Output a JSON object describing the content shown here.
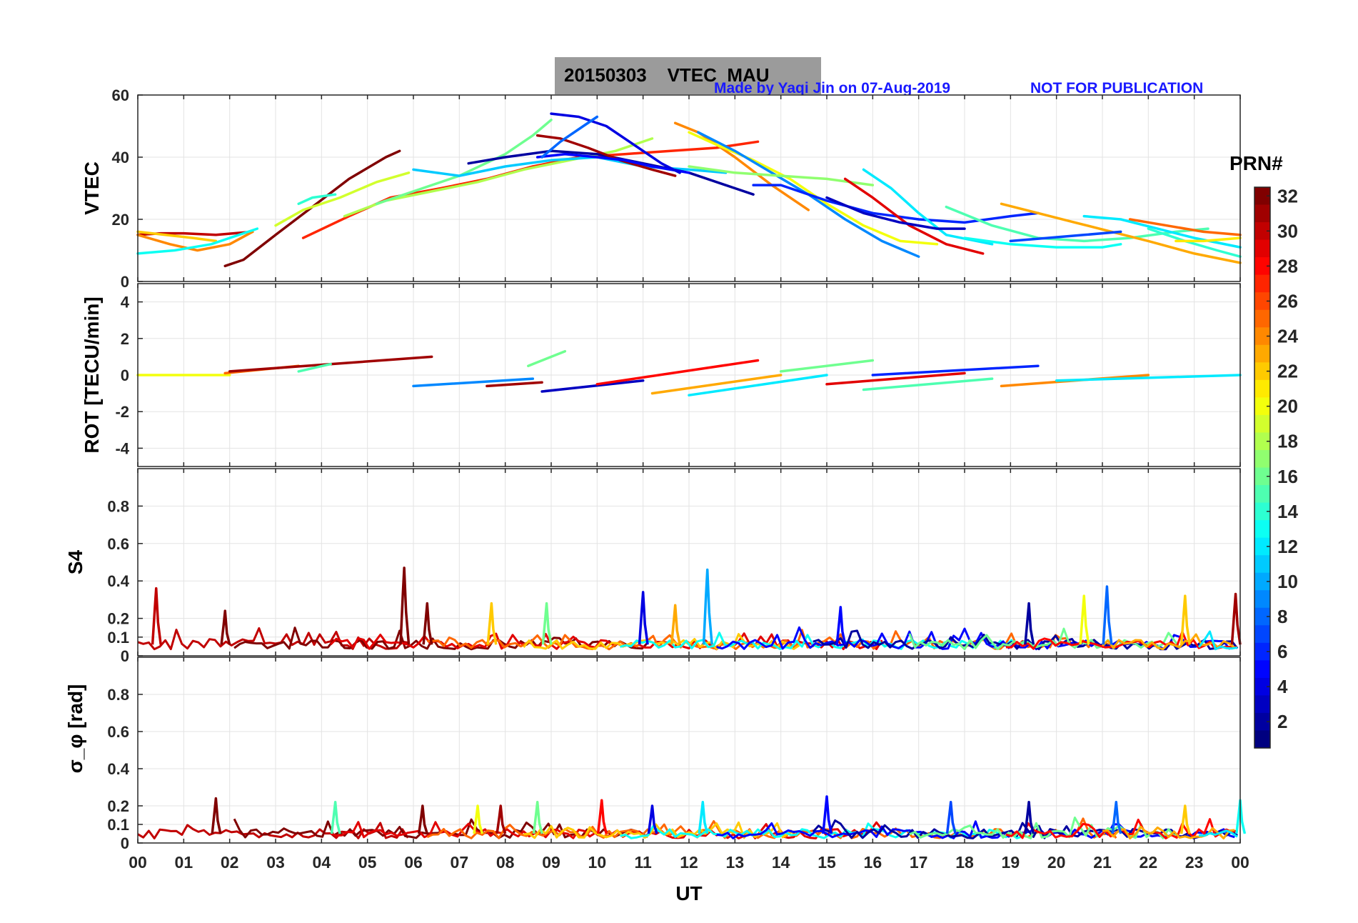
{
  "header": {
    "title": "20150303    VTEC  MAU",
    "credit": "Made by Yaqi Jin on 07-Aug-2019",
    "notice": "NOT FOR PUBLICATION"
  },
  "chart_data": [
    {
      "type": "line",
      "panel": "vtec",
      "ylabel": "VTEC",
      "ylim": [
        0,
        60
      ],
      "yticks": [
        "0",
        "20",
        "40",
        "60"
      ],
      "xlim": [
        0,
        24
      ],
      "grid": true,
      "series": [
        {
          "prn": 30,
          "x": [
            0.0,
            0.5,
            1.0,
            1.7,
            2.5
          ],
          "y": [
            15,
            15.5,
            15.5,
            15,
            16
          ]
        },
        {
          "prn": 32,
          "x": [
            1.9,
            2.3,
            3.0,
            3.8,
            4.6,
            5.4,
            5.7
          ],
          "y": [
            5,
            7,
            15,
            24,
            33,
            40,
            42
          ]
        },
        {
          "prn": 22,
          "x": [
            0.0,
            0.6,
            1.2,
            1.7
          ],
          "y": [
            16,
            15,
            14,
            13
          ]
        },
        {
          "prn": 24,
          "x": [
            0.0,
            0.7,
            1.3,
            2.0,
            2.5
          ],
          "y": [
            15,
            12,
            10,
            12,
            16
          ]
        },
        {
          "prn": 13,
          "x": [
            0.0,
            0.8,
            1.6,
            2.6
          ],
          "y": [
            9,
            10,
            12,
            17
          ]
        },
        {
          "prn": 19,
          "x": [
            3.0,
            3.6,
            4.4,
            5.2,
            5.9
          ],
          "y": [
            18,
            23,
            27,
            32,
            35
          ]
        },
        {
          "prn": 14,
          "x": [
            3.5,
            3.8,
            4.3
          ],
          "y": [
            25,
            27,
            28
          ]
        },
        {
          "prn": 27,
          "x": [
            3.6,
            4.6,
            5.5,
            6.6,
            7.6,
            8.6,
            9.6,
            10.6,
            11.6,
            12.6,
            13.5
          ],
          "y": [
            14,
            21,
            27,
            30,
            33,
            37,
            40,
            41,
            42,
            43,
            45
          ]
        },
        {
          "prn": 18,
          "x": [
            4.5,
            5.4,
            6.4,
            7.4,
            8.4,
            9.4,
            10.4,
            11.2
          ],
          "y": [
            21,
            26,
            29,
            32,
            36,
            39,
            42,
            46
          ]
        },
        {
          "prn": 16,
          "x": [
            5.2,
            6.0,
            7.0,
            8.0,
            8.6,
            9.0
          ],
          "y": [
            25,
            29,
            34,
            41,
            47,
            52
          ]
        },
        {
          "prn": 11,
          "x": [
            6.0,
            7.0,
            8.0,
            9.0,
            10.0,
            11.0,
            12.0,
            12.8
          ],
          "y": [
            36,
            34,
            37,
            39,
            40,
            37,
            36,
            35
          ]
        },
        {
          "prn": 2,
          "x": [
            7.2,
            8.0,
            9.0,
            10.0,
            11.0,
            12.0,
            13.0,
            13.4
          ],
          "y": [
            38,
            40,
            42,
            41,
            38,
            35,
            30,
            28
          ]
        },
        {
          "prn": 31,
          "x": [
            8.7,
            9.2,
            9.8,
            10.5,
            11.2,
            11.7
          ],
          "y": [
            47,
            46,
            43,
            39,
            36,
            34
          ]
        },
        {
          "prn": 5,
          "x": [
            8.7,
            9.3,
            10.0,
            10.6,
            11.2,
            12.0
          ],
          "y": [
            40,
            41,
            40,
            39,
            37,
            35
          ]
        },
        {
          "prn": 4,
          "x": [
            9.0,
            9.6,
            10.2,
            10.8,
            11.4,
            11.8
          ],
          "y": [
            54,
            53,
            50,
            44,
            38,
            35
          ]
        },
        {
          "prn": 8,
          "x": [
            8.8,
            9.2,
            9.7,
            10.0
          ],
          "y": [
            40,
            45,
            50,
            53
          ]
        },
        {
          "prn": 24,
          "x": [
            11.7,
            12.2,
            13.0,
            13.8,
            14.6
          ],
          "y": [
            51,
            48,
            40,
            31,
            23
          ]
        },
        {
          "prn": 20,
          "x": [
            12.0,
            12.6,
            13.4,
            14.2,
            15.0,
            15.8,
            16.6,
            17.4
          ],
          "y": [
            48,
            44,
            39,
            33,
            25,
            18,
            13,
            12
          ]
        },
        {
          "prn": 9,
          "x": [
            12.2,
            13.0,
            13.8,
            14.6,
            15.4,
            16.2,
            17.0
          ],
          "y": [
            48,
            42,
            35,
            28,
            20,
            13,
            8
          ]
        },
        {
          "prn": 17,
          "x": [
            12.0,
            13.0,
            14.0,
            15.0,
            16.0
          ],
          "y": [
            37,
            35,
            34,
            33,
            31
          ]
        },
        {
          "prn": 6,
          "x": [
            13.4,
            14.0,
            15.0,
            16.0,
            17.0,
            18.0,
            19.0,
            19.6
          ],
          "y": [
            31,
            31,
            26,
            22,
            20,
            19,
            21,
            22
          ]
        },
        {
          "prn": 29,
          "x": [
            15.4,
            16.0,
            16.8,
            17.6,
            18.4
          ],
          "y": [
            33,
            27,
            18,
            12,
            9
          ]
        },
        {
          "prn": 12,
          "x": [
            15.8,
            16.4,
            17.0,
            17.6,
            18.6
          ],
          "y": [
            36,
            30,
            22,
            15,
            12
          ]
        },
        {
          "prn": 3,
          "x": [
            15.0,
            15.8,
            16.6,
            17.4,
            18.0
          ],
          "y": [
            27,
            22,
            19,
            17,
            17
          ]
        },
        {
          "prn": 15,
          "x": [
            17.6,
            18.6,
            19.6,
            20.6,
            21.6,
            22.6,
            23.3
          ],
          "y": [
            24,
            18,
            14,
            13,
            14,
            16,
            17
          ]
        },
        {
          "prn": 13,
          "x": [
            18.0,
            19.0,
            20.0,
            21.0,
            21.4
          ],
          "y": [
            14,
            12,
            11,
            11,
            12
          ]
        },
        {
          "prn": 23,
          "x": [
            18.8,
            19.6,
            20.4,
            21.2,
            22.0,
            23.0,
            24.0
          ],
          "y": [
            25,
            22,
            19,
            16,
            13,
            9,
            6
          ]
        },
        {
          "prn": 25,
          "x": [
            21.6,
            22.4,
            23.2,
            24.0
          ],
          "y": [
            20,
            18,
            16,
            15
          ]
        },
        {
          "prn": 12,
          "x": [
            20.6,
            21.4,
            22.2,
            23.0,
            24.0
          ],
          "y": [
            21,
            20,
            17,
            14,
            11
          ]
        },
        {
          "prn": 7,
          "x": [
            19.0,
            19.8,
            20.6,
            21.4
          ],
          "y": [
            13,
            14,
            15,
            16
          ]
        },
        {
          "prn": 14,
          "x": [
            22.0,
            22.8,
            23.5,
            24.0
          ],
          "y": [
            17,
            13,
            10,
            8
          ]
        },
        {
          "prn": 21,
          "x": [
            22.6,
            23.2,
            24.0
          ],
          "y": [
            13,
            13,
            14
          ]
        }
      ]
    },
    {
      "type": "line",
      "panel": "rot",
      "ylabel": "ROT [TECU/min]",
      "ylim": [
        -5,
        5
      ],
      "yticks": [
        "-4",
        "-2",
        "0",
        "2",
        "4"
      ],
      "xlim": [
        0,
        24
      ],
      "grid": true,
      "series": [
        {
          "prn": 20,
          "x": [
            0.0,
            2.0
          ],
          "y": [
            0,
            0
          ]
        },
        {
          "prn": 25,
          "x": [
            1.9,
            3.5
          ],
          "y": [
            0.1,
            0.5
          ]
        },
        {
          "prn": 31,
          "x": [
            2.0,
            6.4
          ],
          "y": [
            0.2,
            1.0
          ]
        },
        {
          "prn": 15,
          "x": [
            3.5,
            4.2
          ],
          "y": [
            0.2,
            0.6
          ]
        },
        {
          "prn": 16,
          "x": [
            8.5,
            9.3
          ],
          "y": [
            0.5,
            1.3
          ]
        },
        {
          "prn": 9,
          "x": [
            6.0,
            8.6
          ],
          "y": [
            -0.6,
            -0.2
          ]
        },
        {
          "prn": 31,
          "x": [
            7.6,
            8.8
          ],
          "y": [
            -0.6,
            -0.4
          ]
        },
        {
          "prn": 3,
          "x": [
            8.8,
            11.0
          ],
          "y": [
            -0.9,
            -0.3
          ]
        },
        {
          "prn": 28,
          "x": [
            10.0,
            13.5
          ],
          "y": [
            -0.5,
            0.8
          ]
        },
        {
          "prn": 23,
          "x": [
            11.2,
            14.0
          ],
          "y": [
            -1.0,
            0.0
          ]
        },
        {
          "prn": 12,
          "x": [
            12.0,
            15.0
          ],
          "y": [
            -1.1,
            0.0
          ]
        },
        {
          "prn": 16,
          "x": [
            14.0,
            16.0
          ],
          "y": [
            0.2,
            0.8
          ]
        },
        {
          "prn": 29,
          "x": [
            15.0,
            18.0
          ],
          "y": [
            -0.5,
            0.1
          ]
        },
        {
          "prn": 15,
          "x": [
            15.8,
            18.6
          ],
          "y": [
            -0.8,
            -0.2
          ]
        },
        {
          "prn": 6,
          "x": [
            16.0,
            19.6
          ],
          "y": [
            0.0,
            0.5
          ]
        },
        {
          "prn": 24,
          "x": [
            18.8,
            22.0
          ],
          "y": [
            -0.6,
            0.0
          ]
        },
        {
          "prn": 12,
          "x": [
            20.0,
            24.0
          ],
          "y": [
            -0.3,
            0.0
          ]
        }
      ]
    },
    {
      "type": "line",
      "panel": "s4",
      "ylabel": "S4",
      "ylim": [
        0,
        1
      ],
      "yticks": [
        "0",
        "0.1",
        "0.2",
        "0.4",
        "0.6",
        "0.8"
      ],
      "xlim": [
        0,
        24
      ],
      "grid": true,
      "peaks": [
        {
          "prn": 30,
          "x": 0.4,
          "y": 0.36
        },
        {
          "prn": 32,
          "x": 1.9,
          "y": 0.24
        },
        {
          "prn": 32,
          "x": 5.8,
          "y": 0.47
        },
        {
          "prn": 32,
          "x": 6.3,
          "y": 0.28
        },
        {
          "prn": 22,
          "x": 7.7,
          "y": 0.28
        },
        {
          "prn": 16,
          "x": 8.9,
          "y": 0.28
        },
        {
          "prn": 4,
          "x": 11.0,
          "y": 0.34
        },
        {
          "prn": 10,
          "x": 12.4,
          "y": 0.46
        },
        {
          "prn": 23,
          "x": 11.7,
          "y": 0.27
        },
        {
          "prn": 5,
          "x": 15.3,
          "y": 0.26
        },
        {
          "prn": 2,
          "x": 19.4,
          "y": 0.28
        },
        {
          "prn": 8,
          "x": 21.1,
          "y": 0.37
        },
        {
          "prn": 20,
          "x": 20.6,
          "y": 0.32
        },
        {
          "prn": 22,
          "x": 22.8,
          "y": 0.32
        },
        {
          "prn": 31,
          "x": 23.9,
          "y": 0.33
        }
      ],
      "baseline": 0.06
    },
    {
      "type": "line",
      "panel": "sigma_phi",
      "ylabel": "σ_φ [rad]",
      "ylim": [
        0,
        1
      ],
      "yticks": [
        "0",
        "0.1",
        "0.2",
        "0.4",
        "0.6",
        "0.8"
      ],
      "xlim": [
        0,
        24
      ],
      "xlabel": "UT",
      "xticks": [
        "00",
        "01",
        "02",
        "03",
        "04",
        "05",
        "06",
        "07",
        "08",
        "09",
        "10",
        "11",
        "12",
        "13",
        "14",
        "15",
        "16",
        "17",
        "18",
        "19",
        "20",
        "21",
        "22",
        "23",
        "00"
      ],
      "grid": true,
      "peaks": [
        {
          "prn": 32,
          "x": 1.7,
          "y": 0.24
        },
        {
          "prn": 15,
          "x": 4.3,
          "y": 0.22
        },
        {
          "prn": 32,
          "x": 6.2,
          "y": 0.2
        },
        {
          "prn": 20,
          "x": 7.4,
          "y": 0.2
        },
        {
          "prn": 31,
          "x": 7.9,
          "y": 0.2
        },
        {
          "prn": 16,
          "x": 8.7,
          "y": 0.22
        },
        {
          "prn": 28,
          "x": 10.1,
          "y": 0.23
        },
        {
          "prn": 4,
          "x": 11.2,
          "y": 0.2
        },
        {
          "prn": 12,
          "x": 12.3,
          "y": 0.22
        },
        {
          "prn": 5,
          "x": 15.0,
          "y": 0.25
        },
        {
          "prn": 7,
          "x": 17.7,
          "y": 0.22
        },
        {
          "prn": 2,
          "x": 19.4,
          "y": 0.22
        },
        {
          "prn": 8,
          "x": 21.3,
          "y": 0.22
        },
        {
          "prn": 22,
          "x": 22.8,
          "y": 0.2
        },
        {
          "prn": 13,
          "x": 24.0,
          "y": 0.23
        }
      ],
      "baseline": 0.05
    }
  ],
  "colorbar": {
    "label": "PRN#",
    "min": 1,
    "max": 32,
    "ticks": [
      "2",
      "4",
      "6",
      "8",
      "10",
      "12",
      "14",
      "16",
      "18",
      "20",
      "22",
      "24",
      "26",
      "28",
      "30",
      "32"
    ]
  }
}
